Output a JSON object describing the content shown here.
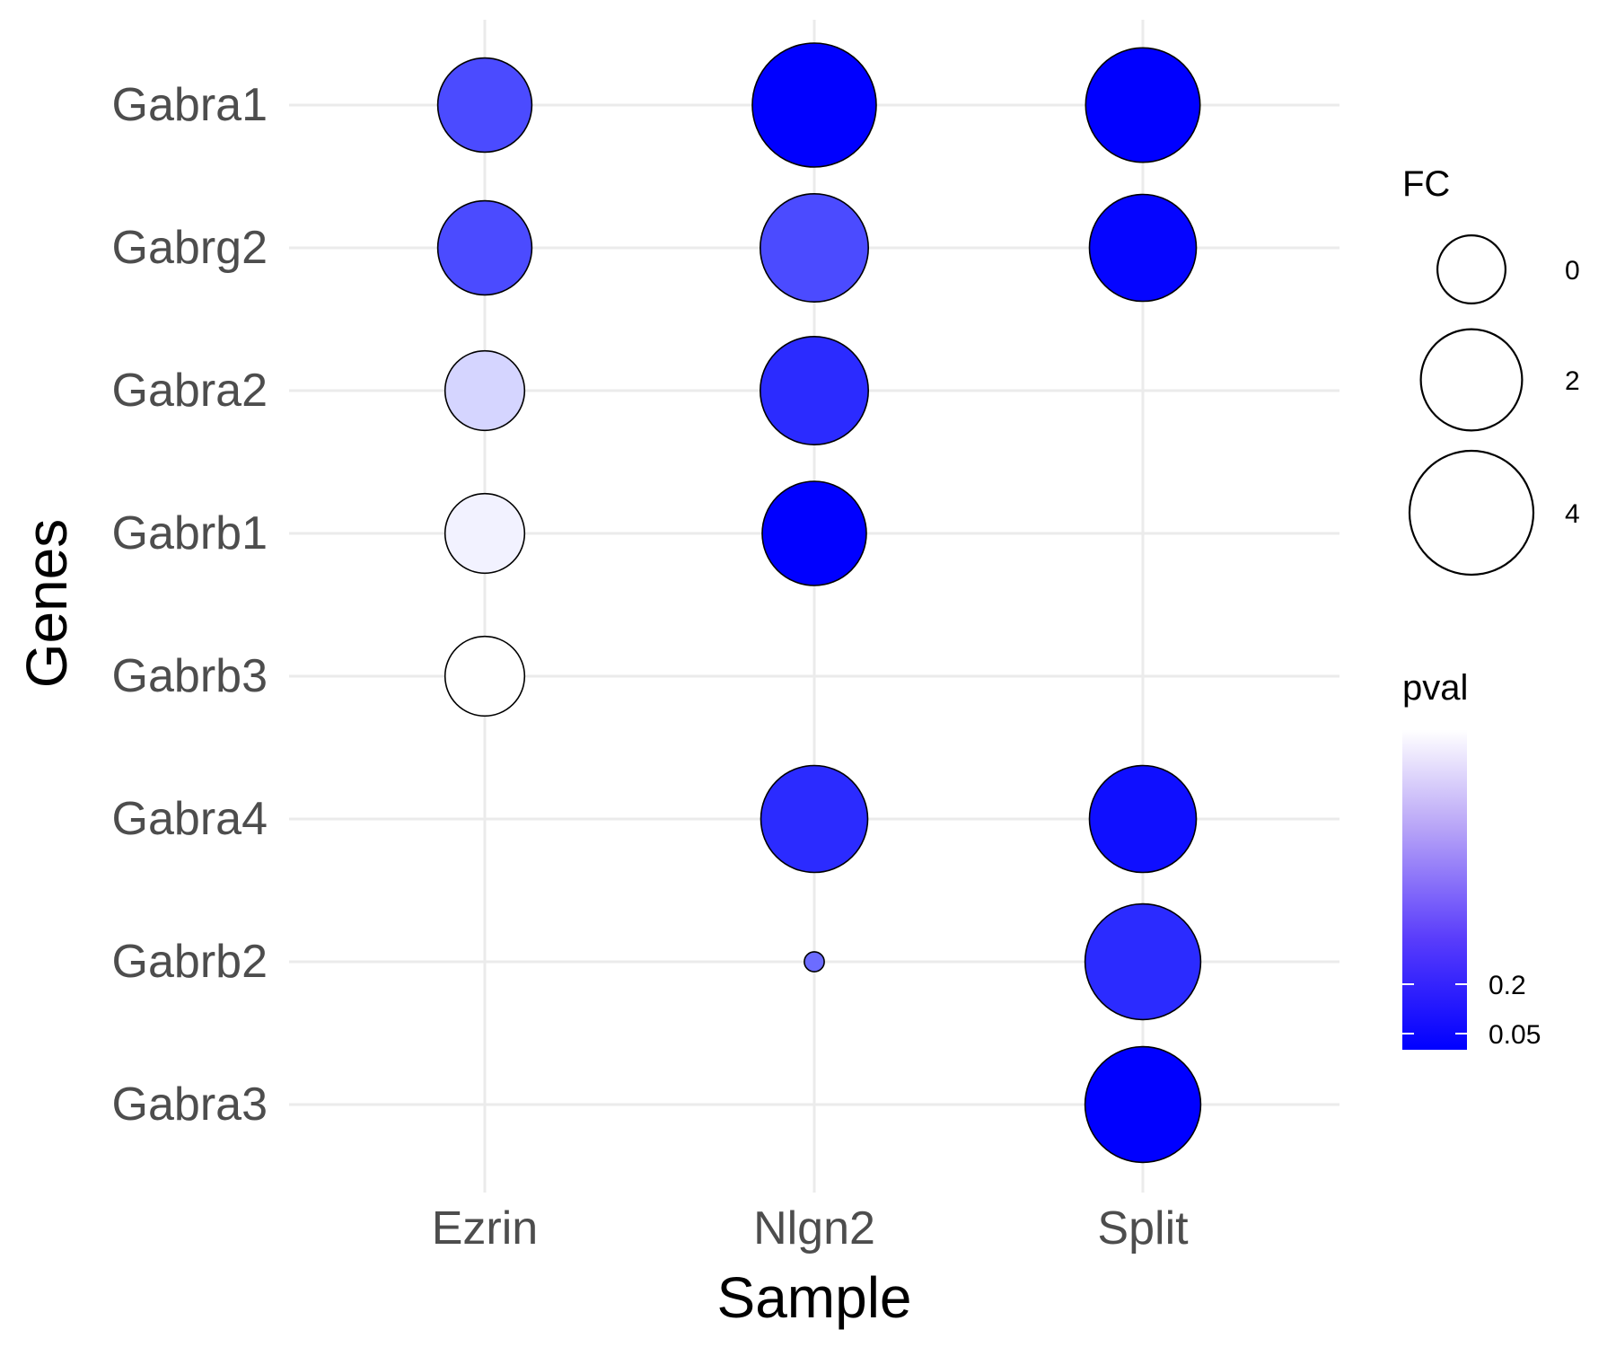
{
  "chart_data": {
    "type": "scatter",
    "title": "",
    "xlabel": "Sample",
    "ylabel": "Genes",
    "categories_x": [
      "Ezrin",
      "Nlgn2",
      "Split"
    ],
    "categories_y": [
      "Gabra1",
      "Gabrg2",
      "Gabra2",
      "Gabrb1",
      "Gabrb3",
      "Gabra4",
      "Gabrb2",
      "Gabra3"
    ],
    "size_variable": "FC",
    "color_variable": "pval",
    "points": [
      {
        "sample": "Ezrin",
        "gene": "Gabra1",
        "FC": 1.5,
        "pval": 0.1
      },
      {
        "sample": "Ezrin",
        "gene": "Gabrg2",
        "FC": 1.5,
        "pval": 0.1
      },
      {
        "sample": "Ezrin",
        "gene": "Gabra2",
        "FC": 0.6,
        "pval": 0.4
      },
      {
        "sample": "Ezrin",
        "gene": "Gabrb1",
        "FC": 0.6,
        "pval": 0.5
      },
      {
        "sample": "Ezrin",
        "gene": "Gabrb3",
        "FC": 0.6,
        "pval": 0.55
      },
      {
        "sample": "Nlgn2",
        "gene": "Gabra1",
        "FC": 3.8,
        "pval": 0.01
      },
      {
        "sample": "Nlgn2",
        "gene": "Gabrg2",
        "FC": 2.5,
        "pval": 0.1
      },
      {
        "sample": "Nlgn2",
        "gene": "Gabra2",
        "FC": 2.5,
        "pval": 0.06
      },
      {
        "sample": "Nlgn2",
        "gene": "Gabrb1",
        "FC": 2.2,
        "pval": 0.01
      },
      {
        "sample": "Nlgn2",
        "gene": "Gabra4",
        "FC": 2.4,
        "pval": 0.06
      },
      {
        "sample": "Nlgn2",
        "gene": "Gabrb2",
        "FC": -1.5,
        "pval": 0.15
      },
      {
        "sample": "Split",
        "gene": "Gabra1",
        "FC": 3.0,
        "pval": 0.01
      },
      {
        "sample": "Split",
        "gene": "Gabrg2",
        "FC": 2.4,
        "pval": 0.02
      },
      {
        "sample": "Split",
        "gene": "Gabra4",
        "FC": 2.4,
        "pval": 0.03
      },
      {
        "sample": "Split",
        "gene": "Gabrb2",
        "FC": 3.1,
        "pval": 0.06
      },
      {
        "sample": "Split",
        "gene": "Gabra3",
        "FC": 3.1,
        "pval": 0.01
      }
    ],
    "legend": {
      "size": {
        "title": "FC",
        "breaks": [
          0,
          2,
          4
        ],
        "labels": [
          "0",
          "2",
          "4"
        ]
      },
      "color": {
        "title": "pval",
        "breaks": [
          0.2,
          0.05
        ],
        "labels": [
          "0.2",
          "0.05"
        ],
        "low_color": "#0000ff",
        "high_color": "#ffffff"
      }
    },
    "grid": true,
    "legend_position": "right"
  }
}
